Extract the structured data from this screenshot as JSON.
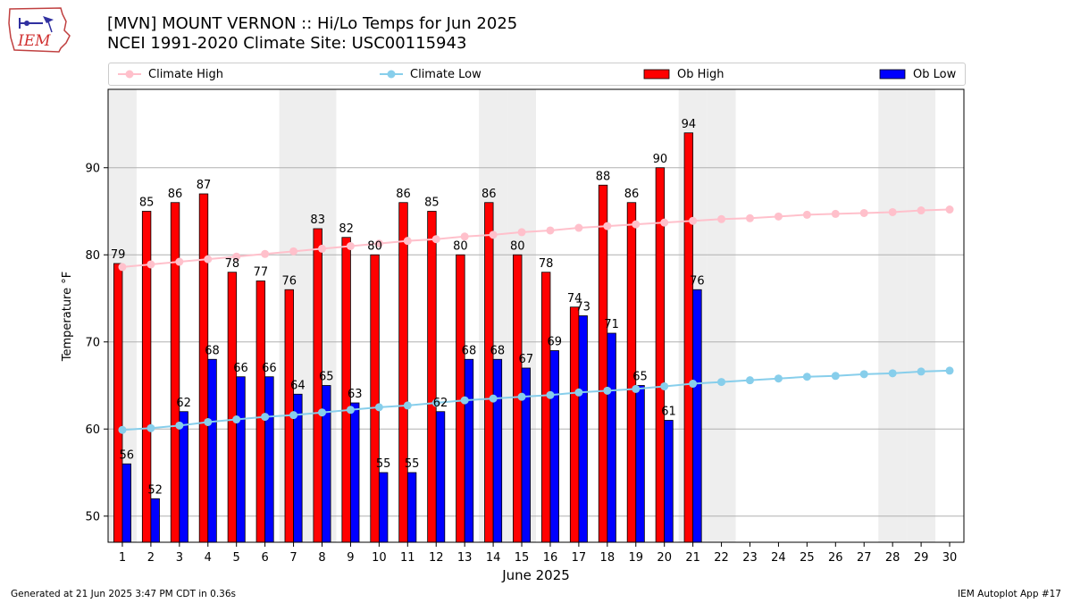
{
  "header": {
    "title_line1": "[MVN] MOUNT VERNON :: Hi/Lo Temps for Jun 2025",
    "title_line2": "NCEI 1991-2020 Climate Site: USC00115943"
  },
  "logo": {
    "text": "IEM"
  },
  "legend": {
    "items": [
      {
        "label": "Climate High",
        "color": "#ffc0cb",
        "kind": "line"
      },
      {
        "label": "Climate Low",
        "color": "#87ceeb",
        "kind": "line"
      },
      {
        "label": "Ob High",
        "color": "#ff0000",
        "kind": "bar"
      },
      {
        "label": "Ob Low",
        "color": "#0000ff",
        "kind": "bar"
      }
    ]
  },
  "chart_data": {
    "type": "bar",
    "xlabel": "June 2025",
    "ylabel": "Temperature °F",
    "ylim": [
      47,
      99
    ],
    "yticks": [
      50,
      60,
      70,
      80,
      90
    ],
    "days": [
      1,
      2,
      3,
      4,
      5,
      6,
      7,
      8,
      9,
      10,
      11,
      12,
      13,
      14,
      15,
      16,
      17,
      18,
      19,
      20,
      21,
      22,
      23,
      24,
      25,
      26,
      27,
      28,
      29,
      30
    ],
    "weekend_days": [
      1,
      7,
      8,
      14,
      15,
      21,
      22,
      28,
      29
    ],
    "grid": "horizontal",
    "series": [
      {
        "name": "Ob High",
        "color": "#ff0000",
        "values": [
          79,
          85,
          86,
          87,
          78,
          77,
          76,
          83,
          82,
          80,
          86,
          85,
          80,
          86,
          80,
          78,
          74,
          88,
          86,
          90,
          94
        ]
      },
      {
        "name": "Ob Low",
        "color": "#0000ff",
        "values": [
          56,
          52,
          62,
          68,
          66,
          66,
          64,
          65,
          63,
          55,
          55,
          62,
          68,
          68,
          67,
          69,
          73,
          71,
          65,
          61,
          76
        ]
      },
      {
        "name": "Climate High",
        "color": "#ffc0cb",
        "values": [
          78.6,
          78.9,
          79.2,
          79.5,
          79.8,
          80.1,
          80.4,
          80.7,
          81.0,
          81.3,
          81.6,
          81.8,
          82.1,
          82.3,
          82.6,
          82.8,
          83.1,
          83.3,
          83.5,
          83.7,
          83.9,
          84.1,
          84.2,
          84.4,
          84.6,
          84.7,
          84.8,
          84.9,
          85.1,
          85.2
        ]
      },
      {
        "name": "Climate Low",
        "color": "#87ceeb",
        "values": [
          59.9,
          60.1,
          60.4,
          60.8,
          61.1,
          61.4,
          61.6,
          61.9,
          62.2,
          62.5,
          62.7,
          63.0,
          63.3,
          63.5,
          63.7,
          63.9,
          64.2,
          64.4,
          64.6,
          64.9,
          65.2,
          65.4,
          65.6,
          65.8,
          66.0,
          66.1,
          66.3,
          66.4,
          66.6,
          66.7
        ]
      }
    ]
  },
  "footer": {
    "generated": "Generated at 21 Jun 2025 3:47 PM CDT in 0.36s",
    "app": "IEM Autoplot App #17"
  }
}
